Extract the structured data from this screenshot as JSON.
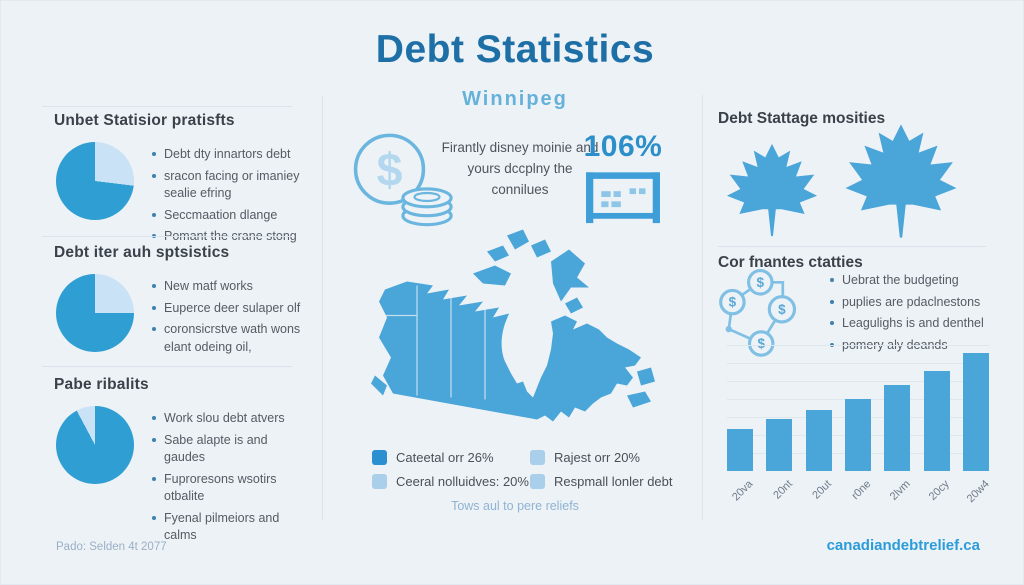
{
  "title": "Debt Statistics",
  "subtitle": "Winnipeg",
  "colors": {
    "pie_main": "#2f9ed2",
    "pie_light": "#c9e2f5",
    "accent_blue": "#4aa5d8",
    "title_blue": "#1d6fa6",
    "stat_blue": "#2d8fc9",
    "legend_dark": "#2b8fd0",
    "legend_light": "#a9cfea"
  },
  "icons": {
    "dollar_coin": "dollar-coins-icon",
    "stat_board": "table-board-icon",
    "maple": "maple-leaf-icon",
    "network": "dollar-network-icon",
    "pie": "pie-chart-icon"
  },
  "left_sections": [
    {
      "heading": "Unbet Statisior pratisfts",
      "pie": {
        "start_deg": 0,
        "sweep_deg": 97
      },
      "bullets": [
        "Debt dty innartors debt",
        "sracon facing or imaniey sealie efring",
        "Seccmaation dlange",
        "Pomant the crane stong"
      ]
    },
    {
      "heading": "Debt iter auh sptsistics",
      "pie": {
        "start_deg": 0,
        "sweep_deg": 90
      },
      "bullets": [
        "New matf works",
        "Euperce deer sulaper olf",
        "coronsicrstve wath wons elant odeing oil,"
      ]
    },
    {
      "heading": "Pabe ribalits",
      "pie": {
        "start_deg": -28,
        "sweep_deg": 28
      },
      "bullets": [
        "Work slou debt atvers",
        "Sabe alapte is and gaudes",
        "Fuproresons wsotirs otbalite",
        "Fyenal pilmeiors and calms"
      ]
    }
  ],
  "center": {
    "blurb": "Firantly disney moinie and yours dccplny the connilues",
    "stat_value": "106%",
    "legend": [
      {
        "label": "Cateetal orr 26%",
        "swatch": "dark"
      },
      {
        "label": "Rajest orr 20%",
        "swatch": "light"
      },
      {
        "label": "Ceeral nolluidves: 20%",
        "swatch": "light"
      },
      {
        "label": "Respmall lonler debt",
        "swatch": "light"
      }
    ],
    "legend_caption": "Tows aul to pere reliefs"
  },
  "right": {
    "section1_heading": "Debt Stattage mosities",
    "section2_heading": "Cor fnantes ctatties",
    "bullets": [
      "Uebrat the budgeting",
      "puplies are pdaclnestons",
      "Leagulighs is and denthel",
      "pomery aly deands"
    ]
  },
  "chart_data": {
    "type": "bar",
    "categories": [
      "20va",
      "20nt",
      "20ut",
      "r0ne",
      "2lvm",
      "20cy",
      "20w4"
    ],
    "values": [
      36,
      44,
      52,
      61,
      73,
      85,
      100
    ],
    "title": "",
    "xlabel": "",
    "ylabel": "",
    "ylim": [
      0,
      100
    ],
    "grid": true,
    "legend_position": "none",
    "bar_color": "#4aa5d8"
  },
  "footer": {
    "left": "Pado: Selden 4t 2077",
    "right": "canadiandebtrelief.ca"
  }
}
